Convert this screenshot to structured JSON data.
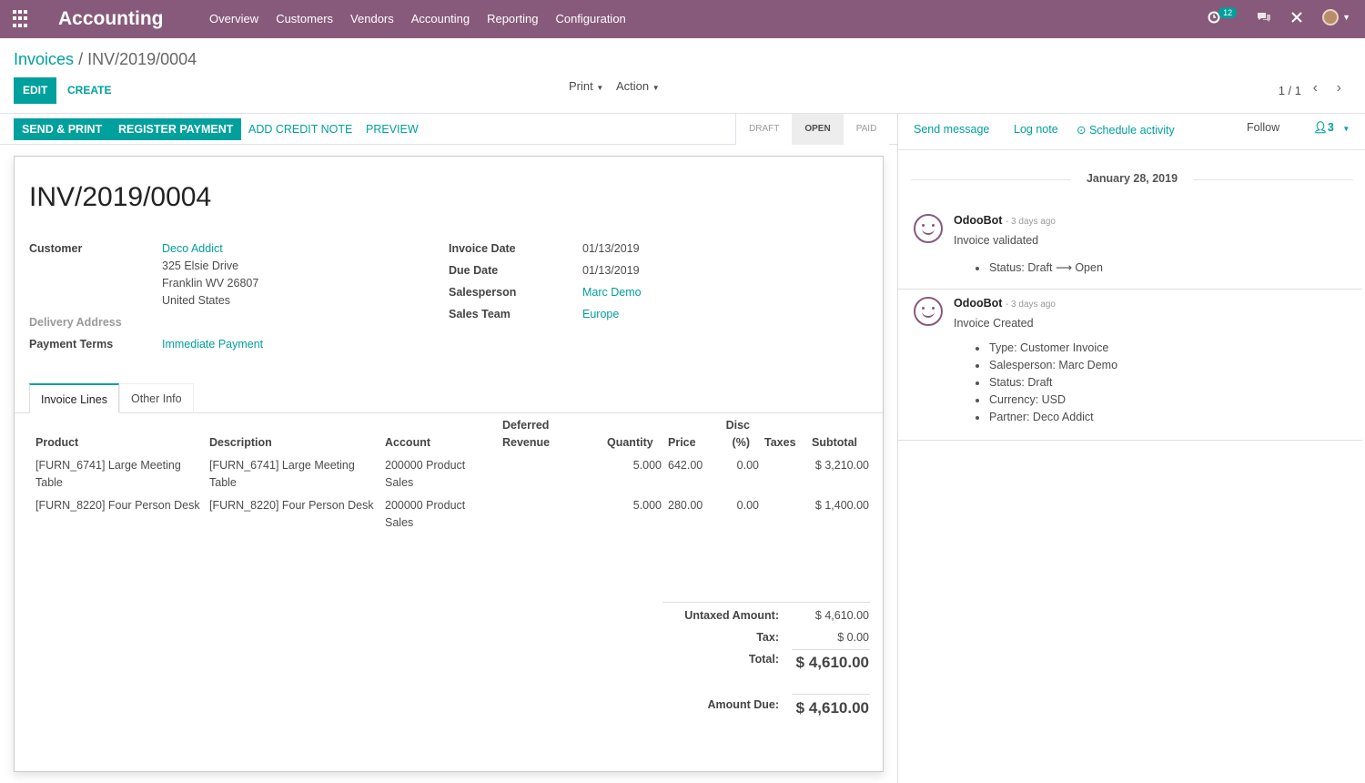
{
  "app": {
    "title": "Accounting",
    "menu": [
      "Overview",
      "Customers",
      "Vendors",
      "Accounting",
      "Reporting",
      "Configuration"
    ],
    "activity_count": "12"
  },
  "breadcrumb": {
    "parent": "Invoices",
    "separator": "/",
    "current": "INV/2019/0004"
  },
  "actions": {
    "edit": "EDIT",
    "create": "CREATE",
    "print": "Print",
    "action": "Action"
  },
  "pager": {
    "value": "1 / 1"
  },
  "statusbar": {
    "send_print": "SEND & PRINT",
    "register_payment": "REGISTER PAYMENT",
    "add_credit_note": "ADD CREDIT NOTE",
    "preview": "PREVIEW",
    "stages": [
      "DRAFT",
      "OPEN",
      "PAID"
    ],
    "active_stage": "OPEN"
  },
  "invoice": {
    "title": "INV/2019/0004",
    "customer_label": "Customer",
    "customer_name": "Deco Addict",
    "address_line1": "325 Elsie Drive",
    "address_line2": "Franklin WV 26807",
    "address_line3": "United States",
    "delivery_label": "Delivery Address",
    "payment_terms_label": "Payment Terms",
    "payment_terms": "Immediate Payment",
    "invoice_date_label": "Invoice Date",
    "invoice_date": "01/13/2019",
    "due_date_label": "Due Date",
    "due_date": "01/13/2019",
    "salesperson_label": "Salesperson",
    "salesperson": "Marc Demo",
    "sales_team_label": "Sales Team",
    "sales_team": "Europe"
  },
  "tabs": [
    "Invoice Lines",
    "Other Info"
  ],
  "lines": {
    "headers": {
      "product": "Product",
      "description": "Description",
      "account": "Account",
      "deferred_1": "Deferred",
      "deferred_2": "Revenue",
      "quantity": "Quantity",
      "price": "Price",
      "disc_1": "Disc",
      "disc_2": "(%)",
      "taxes": "Taxes",
      "subtotal": "Subtotal"
    },
    "rows": [
      {
        "product_1": "[FURN_6741] Large Meeting",
        "product_2": "Table",
        "description_1": "[FURN_6741] Large Meeting",
        "description_2": "Table",
        "account_1": "200000 Product",
        "account_2": "Sales",
        "quantity": "5.000",
        "price": "642.00",
        "disc": "0.00",
        "subtotal": "$ 3,210.00"
      },
      {
        "product_1": "[FURN_8220] Four Person Desk",
        "product_2": "",
        "description_1": "[FURN_8220] Four Person Desk",
        "description_2": "",
        "account_1": "200000 Product",
        "account_2": "Sales",
        "quantity": "5.000",
        "price": "280.00",
        "disc": "0.00",
        "subtotal": "$ 1,400.00"
      }
    ]
  },
  "totals": {
    "untaxed_label": "Untaxed Amount:",
    "untaxed": "$ 4,610.00",
    "tax_label": "Tax:",
    "tax": "$ 0.00",
    "total_label": "Total:",
    "total": "$ 4,610.00",
    "due_label": "Amount Due:",
    "due": "$ 4,610.00"
  },
  "chatter": {
    "send_message": "Send message",
    "log_note": "Log note",
    "schedule_activity": "Schedule activity",
    "follow": "Follow",
    "followers": "3",
    "date": "January 28, 2019",
    "messages": [
      {
        "author": "OdooBot",
        "ago": "- 3 days ago",
        "body": "Invoice validated",
        "items": [
          "Status: Draft ⟶ Open"
        ]
      },
      {
        "author": "OdooBot",
        "ago": "- 3 days ago",
        "body": "Invoice Created",
        "items": [
          "Type: Customer Invoice",
          "Salesperson: Marc Demo",
          "Status: Draft",
          "Currency: USD",
          "Partner: Deco Addict"
        ]
      }
    ]
  },
  "colors": {
    "brand": "#875A7B",
    "accent": "#00A09D"
  }
}
